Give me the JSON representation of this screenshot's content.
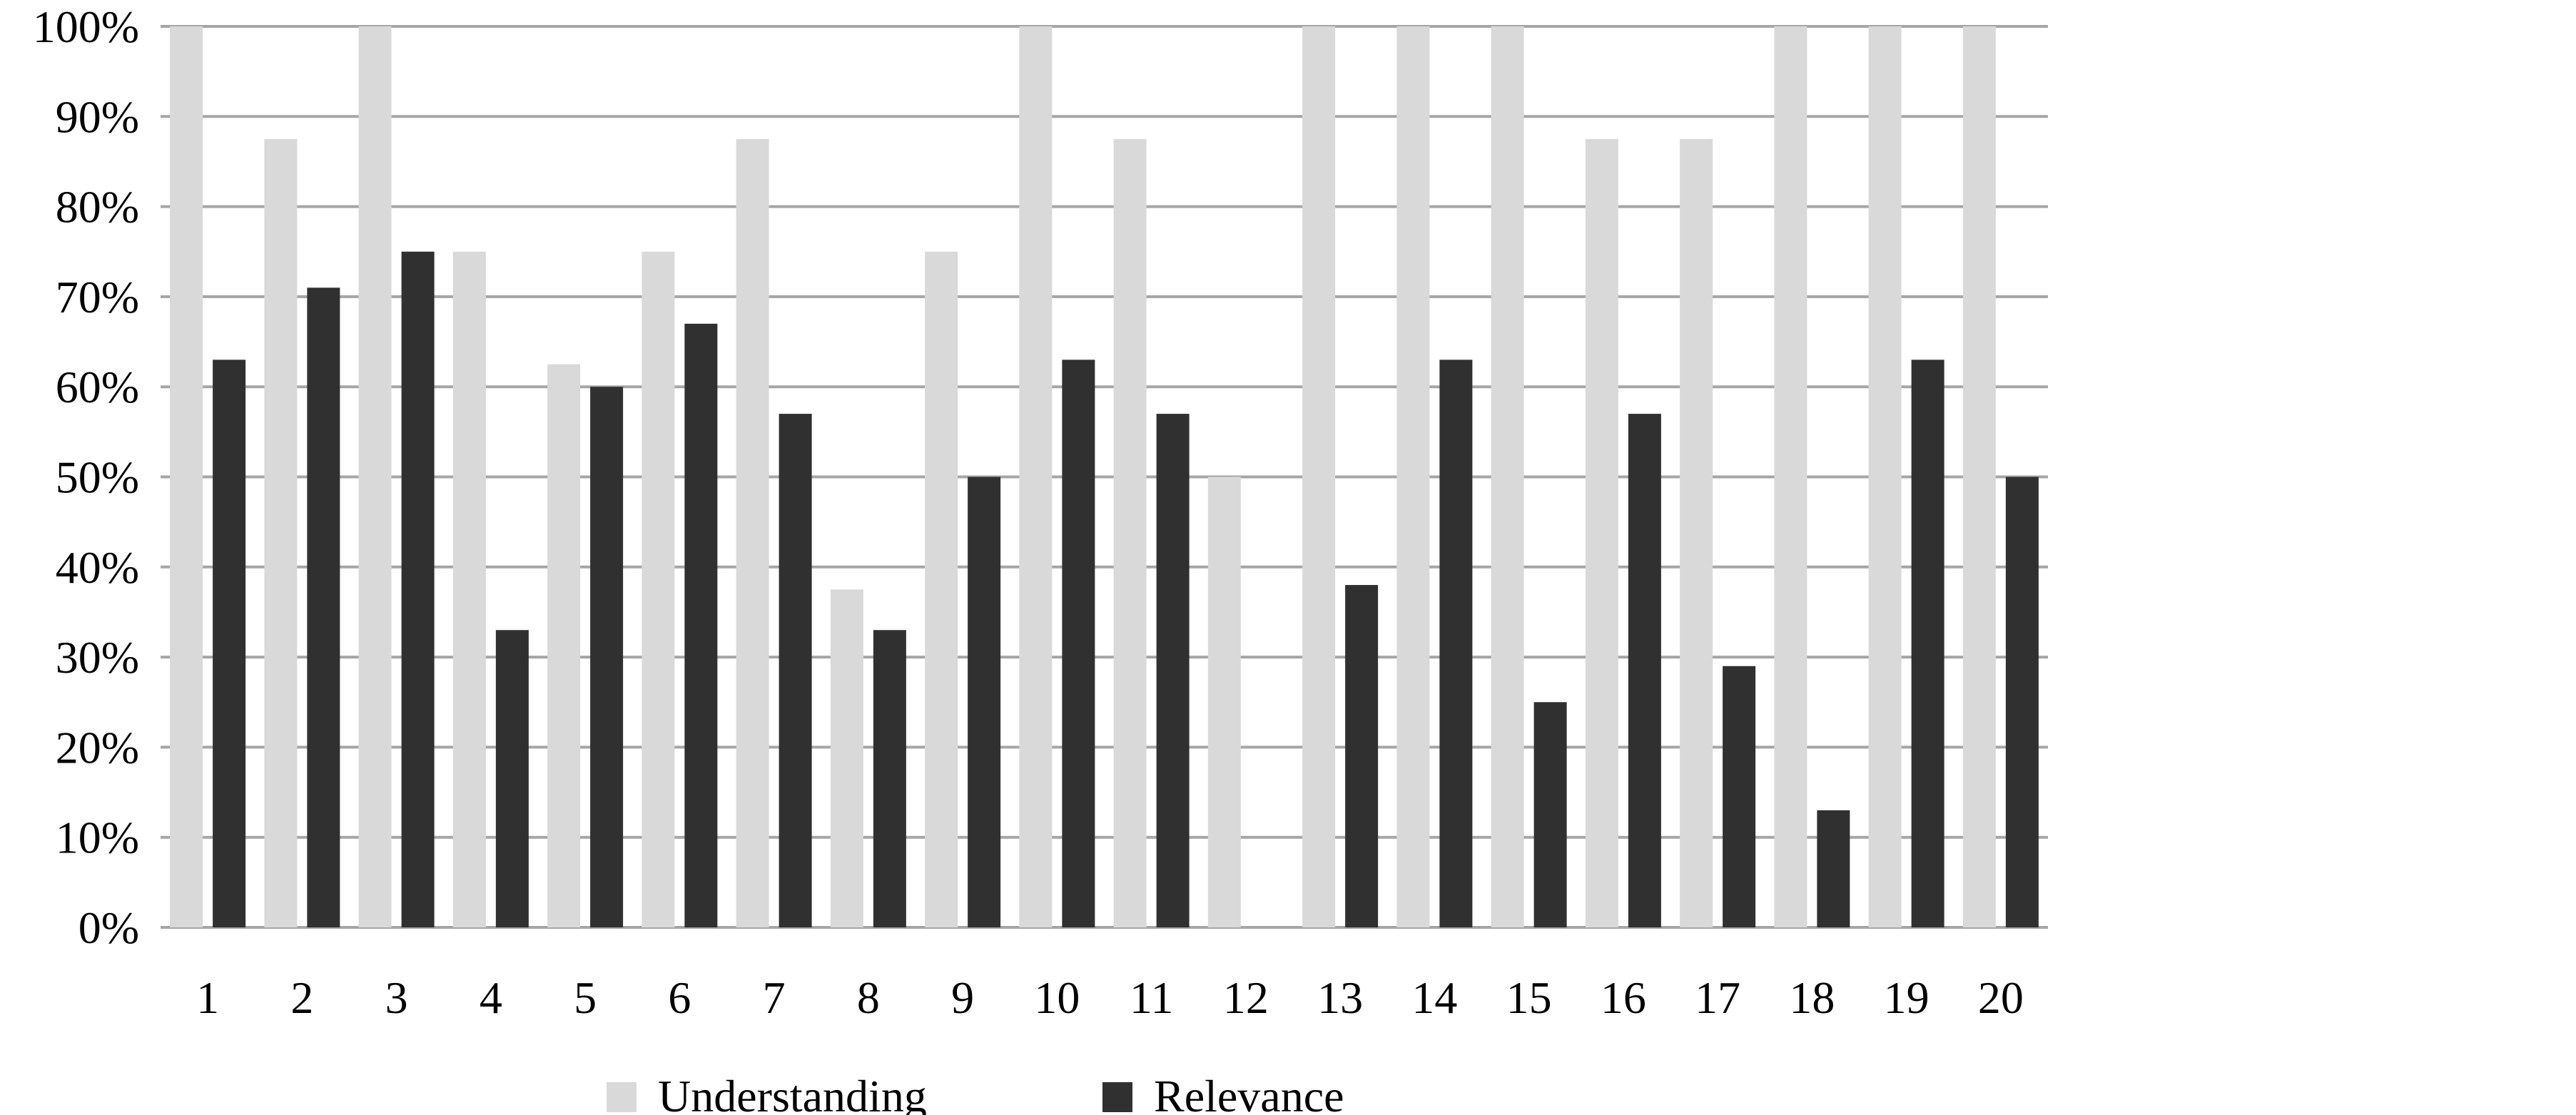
{
  "chart_data": {
    "type": "bar",
    "title": "",
    "xlabel": "",
    "ylabel": "",
    "categories": [
      "1",
      "2",
      "3",
      "4",
      "5",
      "6",
      "7",
      "8",
      "9",
      "10",
      "11",
      "12",
      "13",
      "14",
      "15",
      "16",
      "17",
      "18",
      "19",
      "20"
    ],
    "series": [
      {
        "name": "Understanding",
        "color": "#d9d9d9",
        "values": [
          100,
          87.5,
          100,
          75,
          62.5,
          75,
          87.5,
          37.5,
          75,
          100,
          87.5,
          50,
          100,
          100,
          100,
          87.5,
          87.5,
          100,
          100,
          100
        ]
      },
      {
        "name": "Relevance",
        "color": "#303030",
        "values": [
          63,
          71,
          75,
          33,
          60,
          67,
          57,
          33,
          50,
          63,
          57,
          0,
          38,
          63,
          25,
          57,
          29,
          13,
          63,
          50
        ]
      }
    ],
    "ylim": [
      0,
      100
    ],
    "yticks": [
      0,
      10,
      20,
      30,
      40,
      50,
      60,
      70,
      80,
      90,
      100
    ],
    "ytick_labels": [
      "0%",
      "10%",
      "20%",
      "30%",
      "40%",
      "50%",
      "60%",
      "70%",
      "80%",
      "90%",
      "100%"
    ],
    "grid": true,
    "legend_position": "bottom",
    "gridline_color": "#a6a6a6"
  }
}
